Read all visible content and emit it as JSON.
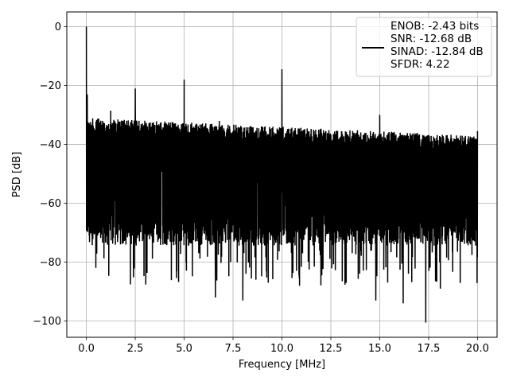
{
  "chart_data": {
    "type": "line",
    "title": "",
    "xlabel": "Frequency [MHz]",
    "ylabel": "PSD [dB]",
    "xlim": [
      -1.0,
      21.0
    ],
    "ylim": [
      -105.5,
      5.0
    ],
    "grid": true,
    "legend_position": "top-right",
    "x_ticks": [
      {
        "value": 0.0,
        "label": "0.0"
      },
      {
        "value": 2.5,
        "label": "2.5"
      },
      {
        "value": 5.0,
        "label": "5.0"
      },
      {
        "value": 7.5,
        "label": "7.5"
      },
      {
        "value": 10.0,
        "label": "10.0"
      },
      {
        "value": 12.5,
        "label": "12.5"
      },
      {
        "value": 15.0,
        "label": "15.0"
      },
      {
        "value": 17.5,
        "label": "17.5"
      },
      {
        "value": 20.0,
        "label": "20.0"
      }
    ],
    "y_ticks": [
      {
        "value": 0,
        "label": "0"
      },
      {
        "value": -20,
        "label": "−20"
      },
      {
        "value": -40,
        "label": "−40"
      },
      {
        "value": -60,
        "label": "−60"
      },
      {
        "value": -80,
        "label": "−80"
      },
      {
        "value": -100,
        "label": "−100"
      }
    ],
    "series": [
      {
        "color": "#000000",
        "noise_band": {
          "x_range": [
            0.0,
            20.0
          ],
          "upper_db_start": -31,
          "upper_db_end": -37,
          "lower_db": -72,
          "deepest_dips_db": -100
        },
        "spurs": [
          {
            "x": 0.0,
            "y": 0.0
          },
          {
            "x": 0.05,
            "y": -23.0
          },
          {
            "x": 1.25,
            "y": -28.5
          },
          {
            "x": 2.5,
            "y": -21.0
          },
          {
            "x": 5.0,
            "y": -18.0
          },
          {
            "x": 6.8,
            "y": -32.0
          },
          {
            "x": 10.0,
            "y": -14.5
          },
          {
            "x": 15.0,
            "y": -30.0
          },
          {
            "x": 20.0,
            "y": -35.5
          }
        ],
        "dips": [
          {
            "x": 6.6,
            "y": -92.0
          },
          {
            "x": 8.0,
            "y": -93.0
          },
          {
            "x": 10.9,
            "y": -88.0
          },
          {
            "x": 14.8,
            "y": -93.0
          },
          {
            "x": 16.2,
            "y": -94.0
          },
          {
            "x": 17.35,
            "y": -100.5
          },
          {
            "x": 18.1,
            "y": -89.0
          }
        ]
      }
    ],
    "legend": {
      "line_color": "#000000",
      "entries": [
        "ENOB: -2.43 bits",
        "SNR: -12.68 dB",
        "SINAD: -12.84 dB",
        "SFDR: 4.22"
      ]
    }
  }
}
